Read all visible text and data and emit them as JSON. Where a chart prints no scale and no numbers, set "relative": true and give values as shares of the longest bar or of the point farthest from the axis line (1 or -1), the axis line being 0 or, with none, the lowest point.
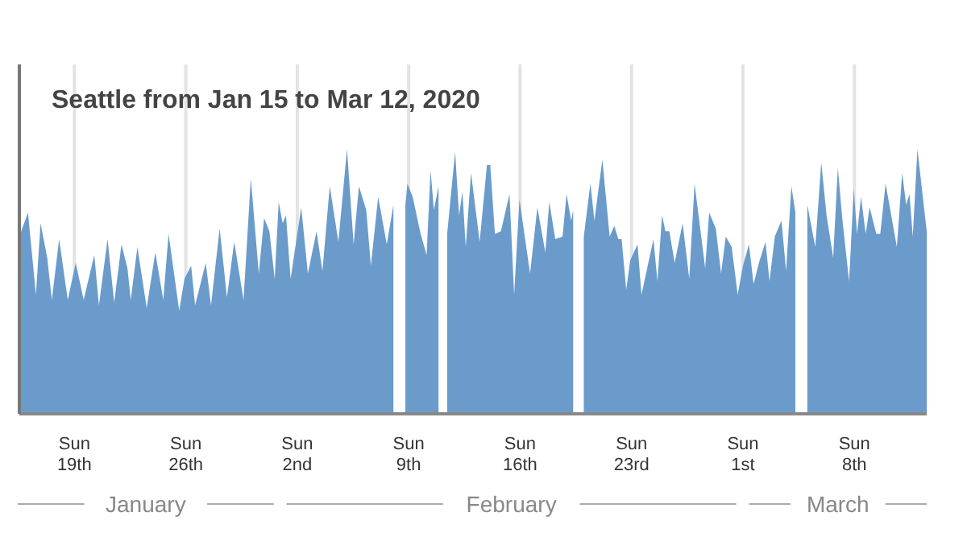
{
  "chart_data": {
    "type": "area",
    "title": "Seattle from Jan 15 to Mar 12, 2020",
    "relative": true,
    "color": "#6a9bcb",
    "grid": "x",
    "xlim": [
      "2020-01-15T13:00",
      "2020-03-12T13:00"
    ],
    "xticks": [
      {
        "value": "2020-01-19",
        "label": "Sun\n19th"
      },
      {
        "value": "2020-01-26",
        "label": "Sun\n26th"
      },
      {
        "value": "2020-02-02",
        "label": "Sun\n2nd"
      },
      {
        "value": "2020-02-09",
        "label": "Sun\n9th"
      },
      {
        "value": "2020-02-16",
        "label": "Sun\n16th"
      },
      {
        "value": "2020-02-23",
        "label": "Sun\n23rd"
      },
      {
        "value": "2020-03-01",
        "label": "Sun\n1st"
      },
      {
        "value": "2020-03-08",
        "label": "Sun\n8th"
      }
    ],
    "annotations": [
      "January",
      "February",
      "March"
    ],
    "x": [
      "2020-01-15T13:00",
      "2020-01-16T02:00",
      "2020-01-16T14:00",
      "2020-01-16T21:00",
      "2020-01-17T07:00",
      "2020-01-17T14:00",
      "2020-01-18T01:00",
      "2020-01-18T14:00",
      "2020-01-19T02:00",
      "2020-01-19T14:00",
      "2020-01-20T06:00",
      "2020-01-20T13:00",
      "2020-01-21T02:00",
      "2020-01-21T12:00",
      "2020-01-21T23:00",
      "2020-01-22T08:00",
      "2020-01-22T13:00",
      "2020-01-22T23:00",
      "2020-01-23T13:00",
      "2020-01-24T02:00",
      "2020-01-24T14:00",
      "2020-01-24T22:00",
      "2020-01-25T14:00",
      "2020-01-25T22:00",
      "2020-01-26T08:00",
      "2020-01-26T14:00",
      "2020-01-27T06:00",
      "2020-01-27T14:00",
      "2020-01-28T03:00",
      "2020-01-28T14:00",
      "2020-01-29T01:00",
      "2020-01-29T15:00",
      "2020-01-30T02:00",
      "2020-01-30T14:00",
      "2020-01-30T22:00",
      "2020-01-31T06:00",
      "2020-01-31T14:00",
      "2020-01-31T20:00",
      "2020-02-01T02:00",
      "2020-02-01T07:00",
      "2020-02-01T14:00",
      "2020-02-02T06:00",
      "2020-02-02T16:00",
      "2020-02-03T05:00",
      "2020-02-03T14:00",
      "2020-02-04T01:00",
      "2020-02-04T14:00",
      "2020-02-05T03:00",
      "2020-02-05T13:00",
      "2020-02-05T21:00",
      "2020-02-06T08:00",
      "2020-02-06T15:00",
      "2020-02-07T02:00",
      "2020-02-07T15:00",
      "2020-02-08T01:00",
      "2020-02-08T10:00",
      "2020-02-08T19:00",
      "2020-02-08T22:00",
      "2020-02-09T06:00",
      "2020-02-09T18:00",
      "2020-02-10T03:00",
      "2020-02-10T09:00",
      "2020-02-10T14:00",
      "2020-02-10T21:00",
      "2020-02-11T05:00",
      "2020-02-11T10:00",
      "2020-02-11T22:00",
      "2020-02-12T04:00",
      "2020-02-12T09:00",
      "2020-02-12T14:00",
      "2020-02-12T22:00",
      "2020-02-13T11:00",
      "2020-02-13T22:00",
      "2020-02-14T03:00",
      "2020-02-14T10:00",
      "2020-02-14T19:00",
      "2020-02-15T08:00",
      "2020-02-15T15:00",
      "2020-02-15T23:00",
      "2020-02-16T15:00",
      "2020-02-17T02:00",
      "2020-02-17T14:00",
      "2020-02-17T20:00",
      "2020-02-18T05:00",
      "2020-02-18T16:00",
      "2020-02-18T22:00",
      "2020-02-19T05:00",
      "2020-02-19T08:00",
      "2020-02-19T14:00",
      "2020-02-20T00:00",
      "2020-02-20T10:00",
      "2020-02-20T16:00",
      "2020-02-21T04:00",
      "2020-02-21T15:00",
      "2020-02-21T22:00",
      "2020-02-22T04:00",
      "2020-02-22T09:00",
      "2020-02-22T16:00",
      "2020-02-22T22:00",
      "2020-02-23T09:00",
      "2020-02-23T15:00",
      "2020-02-24T09:00",
      "2020-02-24T15:00",
      "2020-02-24T22:00",
      "2020-02-25T03:00",
      "2020-02-25T09:00",
      "2020-02-25T17:00",
      "2020-02-26T05:00",
      "2020-02-26T15:00",
      "2020-02-26T23:00",
      "2020-02-27T15:00",
      "2020-02-27T21:00",
      "2020-02-28T07:00",
      "2020-02-28T15:00",
      "2020-02-28T22:00",
      "2020-02-29T07:00",
      "2020-02-29T16:00",
      "2020-03-01T00:00",
      "2020-03-01T09:00",
      "2020-03-01T16:00",
      "2020-03-02T00:00",
      "2020-03-02T10:00",
      "2020-03-02T16:00",
      "2020-03-03T00:00",
      "2020-03-03T10:00",
      "2020-03-03T17:00",
      "2020-03-04T01:00",
      "2020-03-04T07:00",
      "2020-03-04T13:00",
      "2020-03-05T01:00",
      "2020-03-05T13:00",
      "2020-03-05T22:00",
      "2020-03-06T06:00",
      "2020-03-06T16:00",
      "2020-03-06T23:00",
      "2020-03-07T06:00",
      "2020-03-07T16:00",
      "2020-03-07T23:00",
      "2020-03-08T04:00",
      "2020-03-08T10:00",
      "2020-03-08T17:00",
      "2020-03-08T23:00",
      "2020-03-09T09:00",
      "2020-03-09T15:00",
      "2020-03-09T23:00",
      "2020-03-10T16:00",
      "2020-03-11T00:00",
      "2020-03-11T06:00",
      "2020-03-11T11:00",
      "2020-03-11T16:00",
      "2020-03-11T23:00",
      "2020-03-12T13:00"
    ],
    "values": [
      0.67,
      0.76,
      0.45,
      0.72,
      0.59,
      0.43,
      0.66,
      0.43,
      0.57,
      0.43,
      0.6,
      0.41,
      0.66,
      0.42,
      0.64,
      0.55,
      0.43,
      0.63,
      0.4,
      0.61,
      0.43,
      0.68,
      0.39,
      0.51,
      0.56,
      0.41,
      0.57,
      0.41,
      0.7,
      0.44,
      0.65,
      0.43,
      0.89,
      0.53,
      0.74,
      0.69,
      0.51,
      0.8,
      0.72,
      0.75,
      0.51,
      0.78,
      0.53,
      0.69,
      0.54,
      0.86,
      0.65,
      1.0,
      0.64,
      0.86,
      0.77,
      0.56,
      0.82,
      0.64,
      0.79,
      null,
      0.79,
      0.87,
      0.82,
      0.68,
      0.6,
      0.92,
      0.77,
      0.86,
      null,
      0.68,
      0.99,
      0.75,
      0.84,
      0.63,
      0.91,
      0.65,
      0.94,
      0.94,
      0.68,
      0.69,
      0.83,
      0.45,
      0.81,
      0.53,
      0.78,
      0.61,
      0.8,
      0.66,
      0.67,
      0.83,
      0.73,
      0.77,
      null,
      0.67,
      0.87,
      0.73,
      0.96,
      0.67,
      0.71,
      0.66,
      0.66,
      0.47,
      0.58,
      0.64,
      0.45,
      0.66,
      0.5,
      0.75,
      0.69,
      0.69,
      0.57,
      0.72,
      0.51,
      0.87,
      0.55,
      0.76,
      0.7,
      0.53,
      0.67,
      0.63,
      0.45,
      0.56,
      0.64,
      0.49,
      0.57,
      0.65,
      0.5,
      0.67,
      0.73,
      0.54,
      0.86,
      0.76,
      null,
      0.79,
      0.63,
      0.95,
      0.75,
      0.59,
      0.93,
      0.73,
      0.5,
      0.85,
      0.68,
      0.82,
      0.68,
      0.78,
      0.68,
      0.68,
      0.87,
      0.63,
      0.91,
      0.79,
      0.83,
      0.67,
      1.0,
      0.69
    ]
  }
}
